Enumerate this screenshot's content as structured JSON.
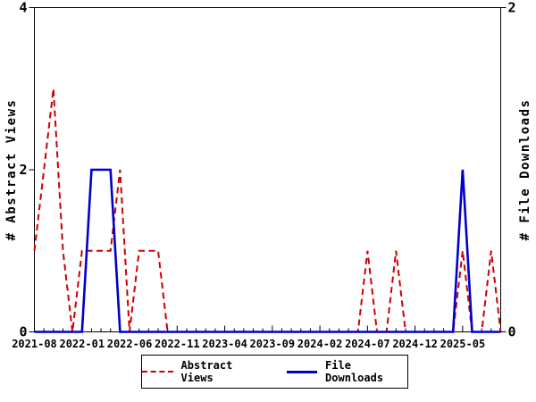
{
  "chart_data": {
    "type": "line",
    "title": "",
    "x": [
      "2021-08",
      "2021-09",
      "2021-10",
      "2021-11",
      "2021-12",
      "2022-01",
      "2022-02",
      "2022-03",
      "2022-04",
      "2022-05",
      "2022-06",
      "2022-07",
      "2022-08",
      "2022-09",
      "2022-10",
      "2022-11",
      "2022-12",
      "2023-01",
      "2023-02",
      "2023-03",
      "2023-04",
      "2023-05",
      "2023-06",
      "2023-07",
      "2023-08",
      "2023-09",
      "2023-10",
      "2023-11",
      "2023-12",
      "2024-01",
      "2024-02",
      "2024-03",
      "2024-04",
      "2024-05",
      "2024-06",
      "2024-07",
      "2024-08",
      "2024-09",
      "2024-10",
      "2024-11",
      "2024-12",
      "2025-01",
      "2025-02",
      "2025-03",
      "2025-04",
      "2025-05",
      "2025-06",
      "2025-07",
      "2025-08",
      "2025-09"
    ],
    "x_major_tick_every": 5,
    "x_major_tick_labels": [
      "2021-08",
      "2022-01",
      "2022-06",
      "2022-11",
      "2023-04",
      "2023-09",
      "2024-02",
      "2024-07",
      "2024-12",
      "2025-05"
    ],
    "series": [
      {
        "name": "Abstract Views",
        "axis": "left",
        "color": "#cc0000",
        "style": "dashed",
        "values": [
          1,
          2,
          3,
          1,
          0,
          1,
          1,
          1,
          1,
          2,
          0,
          1,
          1,
          1,
          0,
          0,
          0,
          0,
          0,
          0,
          0,
          0,
          0,
          0,
          0,
          0,
          0,
          0,
          0,
          0,
          0,
          0,
          0,
          0,
          0,
          1,
          0,
          0,
          1,
          0,
          0,
          0,
          0,
          0,
          0,
          1,
          0,
          0,
          1,
          0
        ]
      },
      {
        "name": "File Downloads",
        "axis": "right",
        "color": "#0000cc",
        "style": "solid",
        "values": [
          0,
          0,
          0,
          0,
          0,
          0,
          1,
          1,
          1,
          0,
          0,
          0,
          0,
          0,
          0,
          0,
          0,
          0,
          0,
          0,
          0,
          0,
          0,
          0,
          0,
          0,
          0,
          0,
          0,
          0,
          0,
          0,
          0,
          0,
          0,
          0,
          0,
          0,
          0,
          0,
          0,
          0,
          0,
          0,
          0,
          1,
          0,
          0,
          0,
          0
        ]
      }
    ],
    "ylabel_left": "# Abstract Views",
    "ylabel_right": "# File Downloads",
    "ylim_left": [
      0,
      4
    ],
    "ylim_right": [
      0,
      2
    ],
    "y_left_tick_labels": [
      "0",
      "2",
      "4"
    ],
    "y_left_tick_values": [
      0,
      2,
      4
    ],
    "y_right_tick_labels": [
      "0",
      "2"
    ],
    "y_right_tick_values": [
      0,
      2
    ],
    "grid": false,
    "legend_position": "bottom-center"
  },
  "colors": {
    "abstract_views": "#cc0000",
    "file_downloads": "#0000cc",
    "axis": "#000000",
    "background": "#ffffff"
  }
}
